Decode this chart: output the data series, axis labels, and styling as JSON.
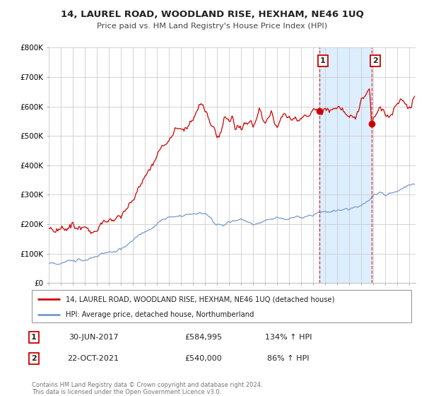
{
  "title": "14, LAUREL ROAD, WOODLAND RISE, HEXHAM, NE46 1UQ",
  "subtitle": "Price paid vs. HM Land Registry's House Price Index (HPI)",
  "fig_bg_color": "#ffffff",
  "plot_bg_color": "#ffffff",
  "red_color": "#cc0000",
  "blue_color": "#7799cc",
  "span_color": "#ddeeff",
  "marker1_date_year": 2017.5,
  "marker2_date_year": 2021.83,
  "marker1_price": 584995,
  "marker2_price": 540000,
  "xlim_left": 1995.0,
  "xlim_right": 2025.5,
  "ylim": [
    0,
    800000
  ],
  "yticks": [
    0,
    100000,
    200000,
    300000,
    400000,
    500000,
    600000,
    700000,
    800000
  ],
  "ytick_labels": [
    "£0",
    "£100K",
    "£200K",
    "£300K",
    "£400K",
    "£500K",
    "£600K",
    "£700K",
    "£800K"
  ],
  "legend1_label": "14, LAUREL ROAD, WOODLAND RISE, HEXHAM, NE46 1UQ (detached house)",
  "legend2_label": "HPI: Average price, detached house, Northumberland",
  "ann1_text": "30-JUN-2017",
  "ann1_price": "£584,995",
  "ann1_hpi": "134% ↑ HPI",
  "ann2_text": "22-OCT-2021",
  "ann2_price": "£540,000",
  "ann2_hpi": "86% ↑ HPI",
  "footer1": "Contains HM Land Registry data © Crown copyright and database right 2024.",
  "footer2": "This data is licensed under the Open Government Licence v3.0."
}
